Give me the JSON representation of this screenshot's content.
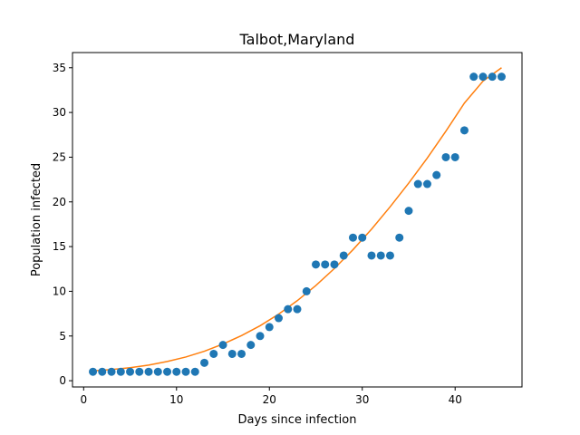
{
  "chart_data": {
    "type": "scatter",
    "title": "Talbot,Maryland",
    "xlabel": "Days since infection",
    "ylabel": "Population infected",
    "xlim": [
      -1.2,
      47.2
    ],
    "ylim": [
      -0.7,
      36.7
    ],
    "xticks": [
      0,
      10,
      20,
      30,
      40
    ],
    "yticks": [
      0,
      5,
      10,
      15,
      20,
      25,
      30,
      35
    ],
    "grid": false,
    "colors": {
      "points": "#1f77b4",
      "fit": "#ff7f0e"
    },
    "series": [
      {
        "kind": "scatter",
        "x": [
          1,
          2,
          3,
          4,
          5,
          6,
          7,
          8,
          9,
          10,
          11,
          12,
          13,
          14,
          15,
          16,
          17,
          18,
          19,
          20,
          21,
          22,
          23,
          24,
          25,
          26,
          27,
          28,
          29,
          30,
          31,
          32,
          33,
          34,
          35,
          36,
          37,
          38,
          39,
          40,
          41,
          42,
          43,
          44,
          45
        ],
        "y": [
          1,
          1,
          1,
          1,
          1,
          1,
          1,
          1,
          1,
          1,
          1,
          1,
          2,
          3,
          4,
          3,
          3,
          4,
          5,
          6,
          7,
          8,
          8,
          10,
          13,
          13,
          13,
          14,
          16,
          16,
          14,
          14,
          14,
          16,
          19,
          22,
          22,
          23,
          25,
          25,
          28,
          34,
          34,
          34,
          34
        ]
      },
      {
        "kind": "line",
        "x": [
          1,
          3,
          5,
          7,
          9,
          11,
          13,
          15,
          17,
          19,
          21,
          23,
          25,
          27,
          29,
          31,
          33,
          35,
          37,
          39,
          41,
          43,
          45
        ],
        "y": [
          1.1,
          1.25,
          1.45,
          1.75,
          2.15,
          2.65,
          3.3,
          4.1,
          5.05,
          6.15,
          7.45,
          8.95,
          10.65,
          12.55,
          14.65,
          16.95,
          19.45,
          22.1,
          24.9,
          27.9,
          31.05,
          33.5,
          35.0
        ]
      }
    ]
  }
}
